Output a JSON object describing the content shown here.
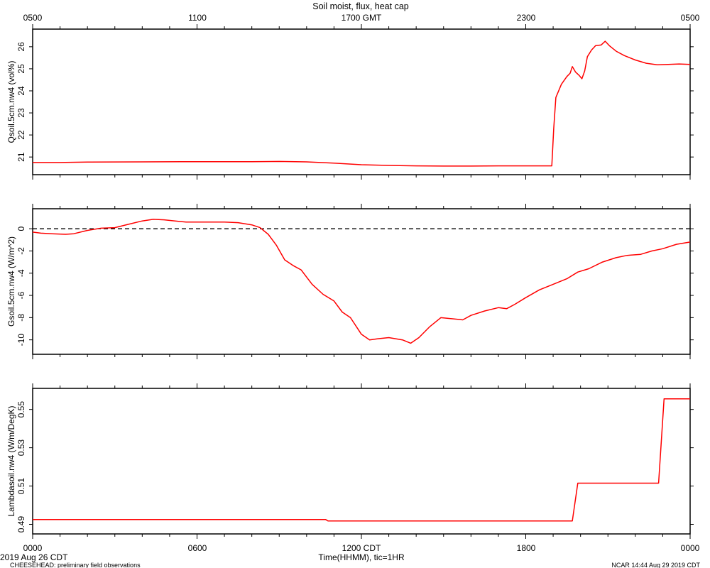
{
  "figure": {
    "title": "Soil moist, flux, heat cap",
    "top_axis_labels": [
      "0500",
      "1100",
      "1700 GMT",
      "2300",
      "0500"
    ],
    "bottom_axis_labels": [
      "0000",
      "0600",
      "1200 CDT",
      "1800",
      "0000"
    ],
    "xlabel": "Time(HHMM), tic=1HR",
    "date_label": "2019 Aug 26 CDT",
    "footer_left": "CHEESEHEAD: preliminary field observations",
    "footer_right": "NCAR 14:44 Aug 29 2019 CDT",
    "line_color": "#ff0000"
  },
  "chart_data": [
    {
      "type": "line",
      "ylabel": "Qsoil.5cm.nw4 (vol%)",
      "ylim": [
        20.2,
        26.8
      ],
      "yticks": [
        21,
        22,
        23,
        24,
        25,
        26
      ],
      "xlim": [
        0,
        24
      ],
      "series": [
        {
          "points": [
            [
              0,
              20.75
            ],
            [
              1,
              20.75
            ],
            [
              2,
              20.77
            ],
            [
              4,
              20.78
            ],
            [
              6,
              20.79
            ],
            [
              8,
              20.79
            ],
            [
              9,
              20.8
            ],
            [
              10,
              20.78
            ],
            [
              11,
              20.72
            ],
            [
              12,
              20.65
            ],
            [
              13,
              20.62
            ],
            [
              14,
              20.6
            ],
            [
              15,
              20.59
            ],
            [
              16,
              20.59
            ],
            [
              17,
              20.6
            ],
            [
              18,
              20.6
            ],
            [
              18.95,
              20.6
            ],
            [
              19.02,
              22.3
            ],
            [
              19.1,
              23.7
            ],
            [
              19.3,
              24.3
            ],
            [
              19.5,
              24.65
            ],
            [
              19.62,
              24.8
            ],
            [
              19.7,
              25.1
            ],
            [
              19.82,
              24.85
            ],
            [
              19.95,
              24.7
            ],
            [
              20.05,
              24.55
            ],
            [
              20.15,
              24.9
            ],
            [
              20.25,
              25.55
            ],
            [
              20.4,
              25.85
            ],
            [
              20.55,
              26.05
            ],
            [
              20.75,
              26.08
            ],
            [
              20.9,
              26.25
            ],
            [
              21.05,
              26.05
            ],
            [
              21.3,
              25.8
            ],
            [
              21.6,
              25.6
            ],
            [
              22,
              25.4
            ],
            [
              22.4,
              25.25
            ],
            [
              22.8,
              25.18
            ],
            [
              23.2,
              25.2
            ],
            [
              23.6,
              25.22
            ],
            [
              24,
              25.2
            ]
          ]
        }
      ]
    },
    {
      "type": "line",
      "ylabel": "Gsoil.5cm.nw4 (W/m^2)",
      "ylim": [
        -11.3,
        1.8
      ],
      "yticks": [
        0,
        -2,
        -4,
        -6,
        -8,
        -10
      ],
      "zero_line": true,
      "xlim": [
        0,
        24
      ],
      "series": [
        {
          "points": [
            [
              0,
              -0.3
            ],
            [
              0.3,
              -0.4
            ],
            [
              0.7,
              -0.45
            ],
            [
              1.2,
              -0.5
            ],
            [
              1.5,
              -0.45
            ],
            [
              2,
              -0.15
            ],
            [
              2.5,
              0.05
            ],
            [
              3,
              0.1
            ],
            [
              3.5,
              0.4
            ],
            [
              4,
              0.7
            ],
            [
              4.4,
              0.85
            ],
            [
              4.8,
              0.8
            ],
            [
              5.2,
              0.7
            ],
            [
              5.6,
              0.6
            ],
            [
              6,
              0.6
            ],
            [
              6.5,
              0.6
            ],
            [
              7,
              0.6
            ],
            [
              7.5,
              0.55
            ],
            [
              8,
              0.35
            ],
            [
              8.3,
              0.1
            ],
            [
              8.6,
              -0.5
            ],
            [
              8.9,
              -1.5
            ],
            [
              9.2,
              -2.8
            ],
            [
              9.5,
              -3.3
            ],
            [
              9.8,
              -3.7
            ],
            [
              10.2,
              -5
            ],
            [
              10.6,
              -5.9
            ],
            [
              11,
              -6.5
            ],
            [
              11.3,
              -7.5
            ],
            [
              11.6,
              -8
            ],
            [
              12,
              -9.5
            ],
            [
              12.3,
              -10
            ],
            [
              12.6,
              -9.9
            ],
            [
              13,
              -9.8
            ],
            [
              13.5,
              -10
            ],
            [
              13.8,
              -10.3
            ],
            [
              14.1,
              -9.8
            ],
            [
              14.5,
              -8.8
            ],
            [
              14.9,
              -8
            ],
            [
              15.3,
              -8.1
            ],
            [
              15.7,
              -8.2
            ],
            [
              16,
              -7.8
            ],
            [
              16.5,
              -7.4
            ],
            [
              17,
              -7.1
            ],
            [
              17.3,
              -7.2
            ],
            [
              17.6,
              -6.8
            ],
            [
              18,
              -6.2
            ],
            [
              18.5,
              -5.5
            ],
            [
              19,
              -5
            ],
            [
              19.5,
              -4.5
            ],
            [
              19.9,
              -3.9
            ],
            [
              20.3,
              -3.6
            ],
            [
              20.8,
              -3
            ],
            [
              21.3,
              -2.6
            ],
            [
              21.7,
              -2.4
            ],
            [
              22.2,
              -2.3
            ],
            [
              22.6,
              -2
            ],
            [
              23,
              -1.8
            ],
            [
              23.5,
              -1.4
            ],
            [
              24,
              -1.2
            ]
          ]
        }
      ]
    },
    {
      "type": "line",
      "ylabel": "Lambdasoil.nw4 (W/m/DegK)",
      "ylim": [
        0.485,
        0.561
      ],
      "yticks": [
        0.49,
        0.51,
        0.53,
        0.55
      ],
      "xlim": [
        0,
        24
      ],
      "series": [
        {
          "points": [
            [
              0,
              0.4925
            ],
            [
              10.7,
              0.4925
            ],
            [
              10.78,
              0.4918
            ],
            [
              19.7,
              0.4918
            ],
            [
              19.9,
              0.5115
            ],
            [
              22.85,
              0.5115
            ],
            [
              23.05,
              0.5555
            ],
            [
              24,
              0.5555
            ]
          ]
        }
      ]
    }
  ]
}
